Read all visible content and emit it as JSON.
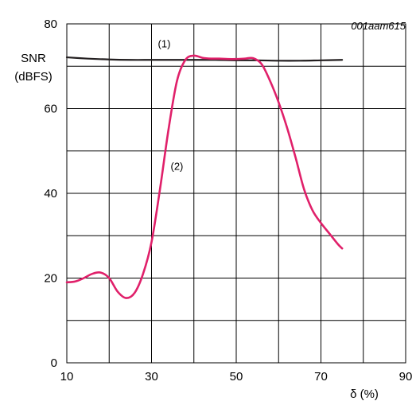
{
  "figure_id": "001aam615",
  "chart_data": {
    "type": "line",
    "ylabel_line1": "SNR",
    "ylabel_line2": "(dBFS)",
    "xlabel": "δ (%)",
    "xlim": [
      10,
      90
    ],
    "ylim": [
      0,
      80
    ],
    "xticks": [
      10,
      30,
      50,
      70,
      90
    ],
    "yticks": [
      0,
      20,
      40,
      60,
      80
    ],
    "grid": true,
    "series": [
      {
        "name": "(1)",
        "color": "#231f20",
        "x": [
          10,
          15,
          20,
          25,
          30,
          35,
          40,
          45,
          50,
          55,
          60,
          65,
          70,
          75
        ],
        "y": [
          72.1,
          71.8,
          71.6,
          71.5,
          71.5,
          71.5,
          71.5,
          71.5,
          71.4,
          71.4,
          71.3,
          71.3,
          71.4,
          71.5
        ]
      },
      {
        "name": "(2)",
        "color": "#e0206a",
        "x": [
          10,
          12,
          14,
          16,
          18,
          20,
          22,
          24,
          26,
          28,
          30,
          32,
          34,
          36,
          38,
          40,
          42,
          44,
          46,
          48,
          50,
          52,
          54,
          56,
          58,
          60,
          62,
          64,
          66,
          68,
          70,
          72,
          74,
          75
        ],
        "y": [
          19.0,
          19.2,
          20.0,
          21.0,
          21.3,
          20.0,
          16.8,
          15.3,
          16.5,
          21.0,
          28.5,
          41.0,
          55.0,
          66.5,
          71.5,
          72.5,
          72.0,
          71.8,
          71.8,
          71.7,
          71.7,
          71.8,
          71.9,
          70.5,
          66.5,
          61.5,
          55.5,
          48.5,
          41.0,
          36.0,
          33.0,
          30.5,
          28.0,
          27.0
        ]
      }
    ],
    "annotations": [
      {
        "text": "(1)",
        "x": 33,
        "y": 74.5
      },
      {
        "text": "(2)",
        "x": 36,
        "y": 45.5
      }
    ]
  }
}
